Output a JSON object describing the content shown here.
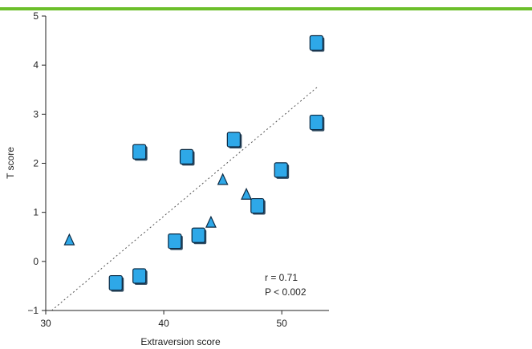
{
  "colors": {
    "accent_bar": "#6cbf2a",
    "marker_fill": "#2ea8e8",
    "marker_stroke": "#0b2a44",
    "axis": "#222222",
    "trend": "#555555"
  },
  "chart_data": {
    "type": "scatter",
    "title": "",
    "xlabel": "Extraversion score",
    "ylabel": "T score",
    "xlim": [
      30,
      54
    ],
    "ylim": [
      -1,
      5
    ],
    "xticks": [
      30,
      40,
      50
    ],
    "yticks": [
      -1,
      0,
      1,
      2,
      3,
      4,
      5
    ],
    "grid": false,
    "legend": "none",
    "series": [
      {
        "marker": "square",
        "points": [
          {
            "x": 36,
            "y": -0.47
          },
          {
            "x": 38,
            "y": -0.33
          },
          {
            "x": 38,
            "y": 2.2
          },
          {
            "x": 41,
            "y": 0.38
          },
          {
            "x": 42,
            "y": 2.1
          },
          {
            "x": 43,
            "y": 0.5
          },
          {
            "x": 46,
            "y": 2.45
          },
          {
            "x": 48,
            "y": 1.1
          },
          {
            "x": 50,
            "y": 1.83
          },
          {
            "x": 53,
            "y": 4.42
          },
          {
            "x": 53,
            "y": 2.8
          }
        ]
      },
      {
        "marker": "triangle",
        "points": [
          {
            "x": 32,
            "y": 0.42
          },
          {
            "x": 44,
            "y": 0.78
          },
          {
            "x": 45,
            "y": 1.65
          },
          {
            "x": 47,
            "y": 1.35
          }
        ]
      }
    ],
    "trendline": {
      "style": "dotted",
      "x": [
        30.5,
        53
      ],
      "y": [
        -1,
        3.55
      ]
    },
    "annotations": [
      "r = 0.71",
      "P < 0.002"
    ]
  }
}
